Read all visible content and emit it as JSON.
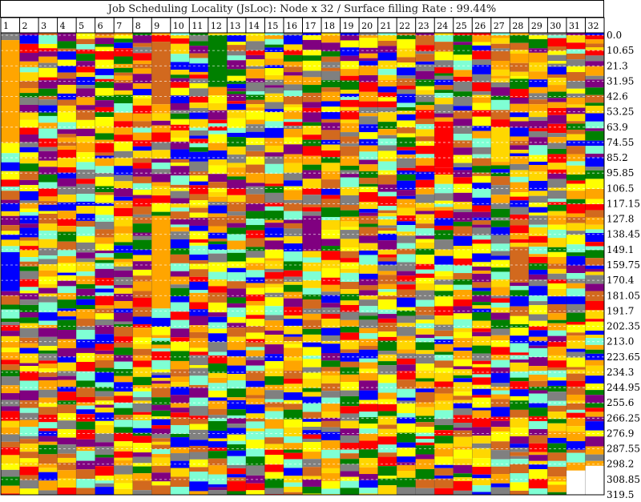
{
  "chart_data": {
    "type": "heatmap",
    "title": "Job Scheduling Locality (JsLoc): Node x 32 / Surface filling Rate : 99.44%",
    "xlabel": "",
    "ylabel": "",
    "categories": [
      "1",
      "2",
      "3",
      "4",
      "5",
      "6",
      "7",
      "8",
      "9",
      "10",
      "11",
      "12",
      "13",
      "14",
      "15",
      "16",
      "17",
      "18",
      "19",
      "20",
      "21",
      "22",
      "23",
      "24",
      "25",
      "26",
      "27",
      "28",
      "29",
      "30",
      "31",
      "32"
    ],
    "y_ticks": [
      "0.0",
      "10.65",
      "21.3",
      "31.95",
      "42.6",
      "53.25",
      "63.9",
      "74.55",
      "85.2",
      "95.85",
      "106.5",
      "117.15",
      "127.8",
      "138.45",
      "149.1",
      "159.75",
      "170.4",
      "181.05",
      "191.7",
      "202.35",
      "213.0",
      "223.65",
      "234.3",
      "244.95",
      "255.6",
      "266.25",
      "276.9",
      "287.55",
      "298.2",
      "308.85",
      "319.5"
    ],
    "ylim": [
      0,
      319.5
    ],
    "grid": true,
    "palette": [
      "#FFA500",
      "#FFFF00",
      "#FF0000",
      "#0000FF",
      "#800080",
      "#008000",
      "#808080",
      "#7FFFD4",
      "#D2691E",
      "#FFD700"
    ],
    "long_jobs": [
      {
        "node": 1,
        "start": 5,
        "end": 75,
        "color": "#FFA500"
      },
      {
        "node": 1,
        "start": 152,
        "end": 178,
        "color": "#0000FF"
      },
      {
        "node": 9,
        "start": 8,
        "end": 48,
        "color": "#D2691E"
      },
      {
        "node": 9,
        "start": 128,
        "end": 190,
        "color": "#FFA500"
      },
      {
        "node": 12,
        "start": 3,
        "end": 36,
        "color": "#008000"
      },
      {
        "node": 24,
        "start": 62,
        "end": 92,
        "color": "#FF0000"
      },
      {
        "node": 27,
        "start": 64,
        "end": 88,
        "color": "#FFD700"
      },
      {
        "node": 17,
        "start": 128,
        "end": 150,
        "color": "#800080"
      },
      {
        "node": 28,
        "start": 150,
        "end": 172,
        "color": "#D2691E"
      }
    ],
    "blank_tail": [
      {
        "node": 31,
        "start": 298.2,
        "end": 319.5
      },
      {
        "node": 32,
        "start": 298.2,
        "end": 319.5
      }
    ]
  }
}
